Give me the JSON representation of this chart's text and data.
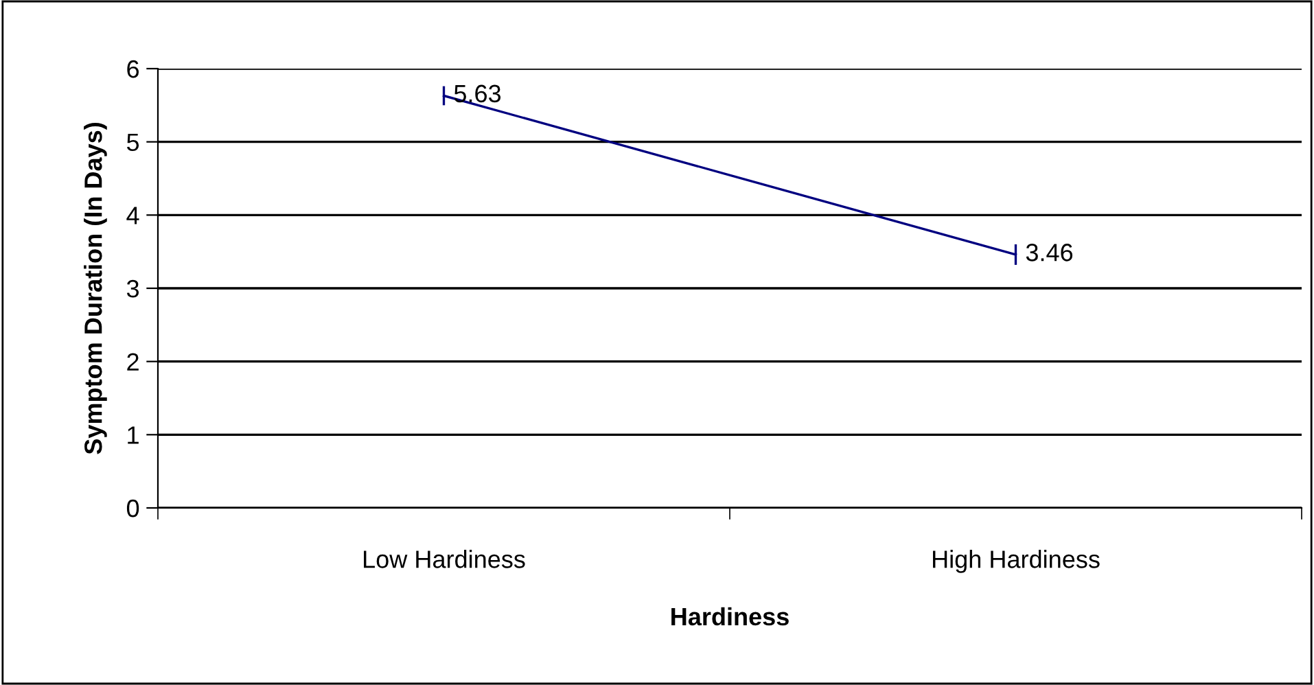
{
  "chart_data": {
    "type": "line",
    "xlabel": "Hardiness",
    "ylabel": "Symptom Duration (In Days)",
    "categories": [
      "Low Hardiness",
      "High Hardiness"
    ],
    "series": [
      {
        "color": "#000080",
        "values": [
          5.63,
          3.46
        ],
        "errors": [
          0.13,
          0.14
        ]
      }
    ],
    "ylim": [
      0,
      6
    ],
    "yticks": [
      0,
      1,
      2,
      3,
      4,
      5,
      6
    ],
    "grid": "y",
    "data_labels": true,
    "legend": false,
    "marker": "none",
    "line_style": "solid"
  }
}
